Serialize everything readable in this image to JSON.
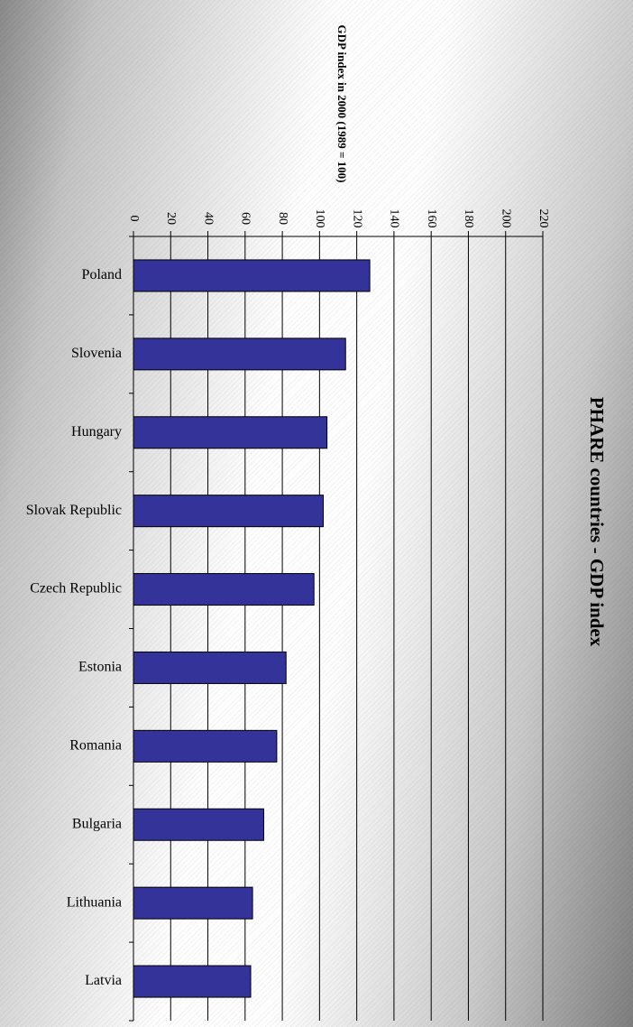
{
  "chart_data": {
    "type": "bar",
    "orientation": "horizontal",
    "title": "PHARE countries - GDP index",
    "ylabel": "GDP index in 2000 (1989 = 100)",
    "categories": [
      "Poland",
      "Slovenia",
      "Hungary",
      "Slovak Republic",
      "Czech Republic",
      "Estonia",
      "Romania",
      "Bulgaria",
      "Lithuania",
      "Latvia"
    ],
    "values": [
      127,
      114,
      104,
      102,
      97,
      82,
      77,
      70,
      64,
      63
    ],
    "ylim": [
      0,
      220
    ],
    "yticks": [
      "0",
      "20",
      "40",
      "60",
      "80",
      "100",
      "120",
      "140",
      "160",
      "180",
      "200",
      "220"
    ],
    "grid": true,
    "legend": "none",
    "bar_color": "#333399"
  }
}
